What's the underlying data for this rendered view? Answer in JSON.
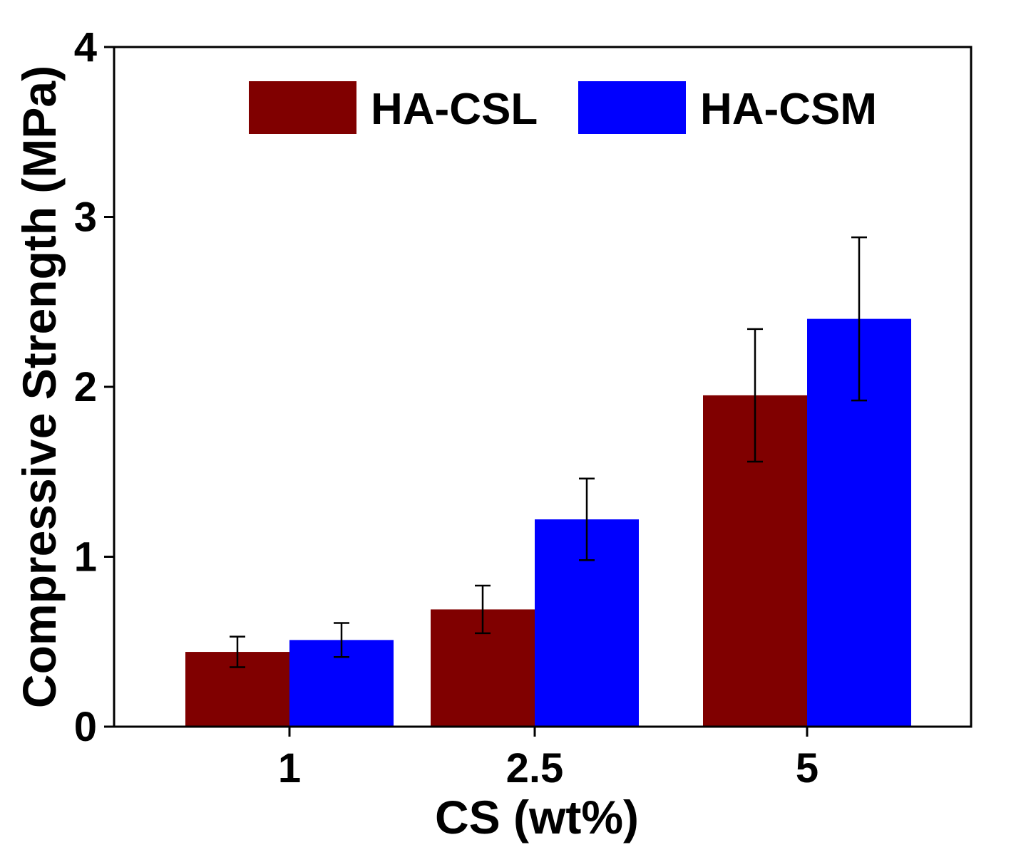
{
  "chart_data": {
    "type": "bar",
    "categories": [
      "1",
      "2.5",
      "5"
    ],
    "series": [
      {
        "name": "HA-CSL",
        "color": "#800000",
        "values": [
          0.44,
          0.69,
          1.95
        ],
        "errors": [
          0.09,
          0.14,
          0.39
        ]
      },
      {
        "name": "HA-CSM",
        "color": "#0000FF",
        "values": [
          0.51,
          1.22,
          2.4
        ],
        "errors": [
          0.1,
          0.24,
          0.48
        ]
      }
    ],
    "xlabel": "CS (wt%)",
    "ylabel": "Compressive Strength (MPa)",
    "ylim": [
      0,
      4
    ],
    "yticks": [
      "0",
      "1",
      "2",
      "3",
      "4"
    ],
    "legend": {
      "position": "top",
      "entries": [
        "HA-CSL",
        "HA-CSM"
      ]
    },
    "grid": false
  }
}
